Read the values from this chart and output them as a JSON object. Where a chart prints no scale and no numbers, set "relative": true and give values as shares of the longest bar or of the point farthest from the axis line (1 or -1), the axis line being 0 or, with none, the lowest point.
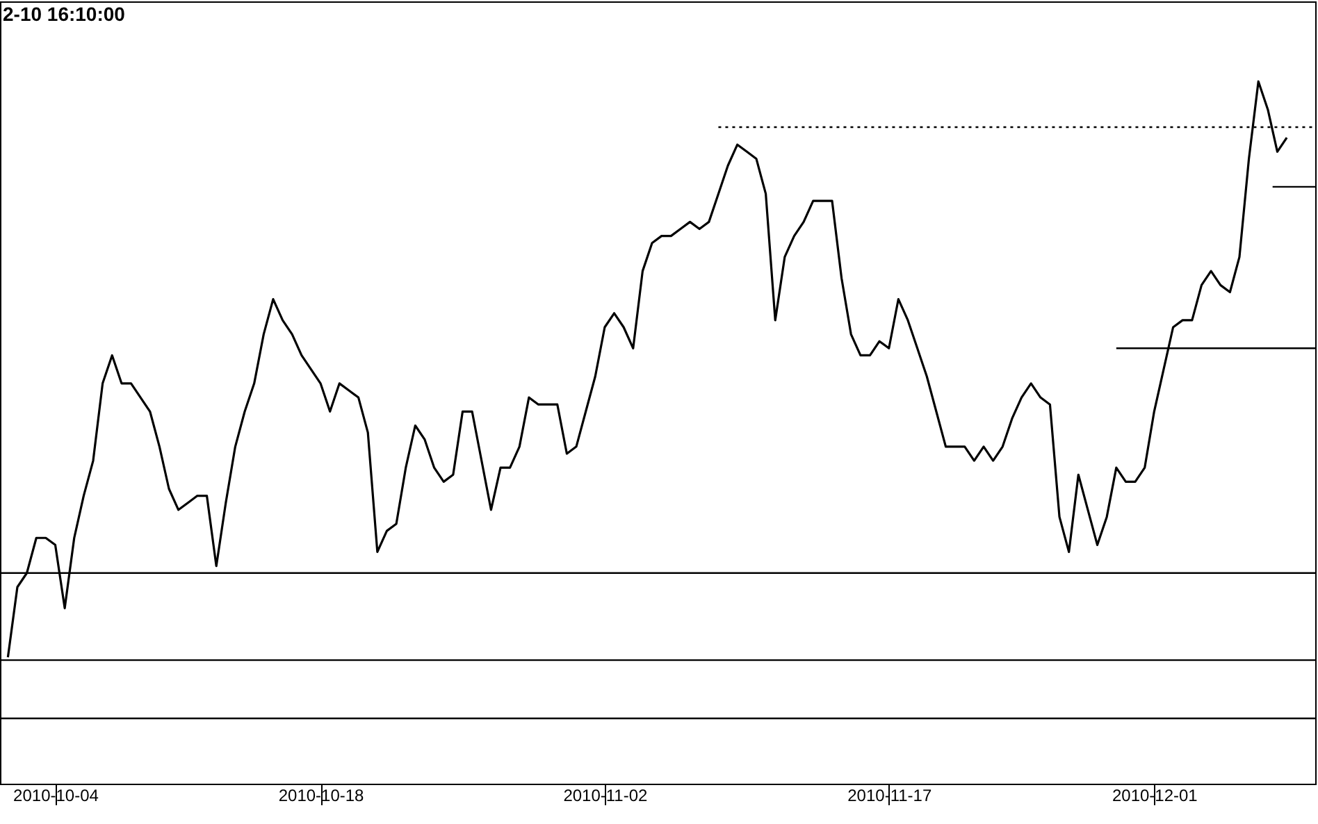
{
  "chart_data": {
    "type": "line",
    "title": "2-10 16:10:00",
    "relative": true,
    "xlim": [
      "2010-10-01T02:00",
      "2010-12-09T12:00"
    ],
    "xticks": [
      "2010-10-04",
      "2010-10-18",
      "2010-11-02",
      "2010-11-17",
      "2010-12-01"
    ],
    "x": [
      "2010-10-01T12:00",
      "2010-10-02T00:00",
      "2010-10-02T12:00",
      "2010-10-03T00:00",
      "2010-10-03T12:00",
      "2010-10-04T00:00",
      "2010-10-04T12:00",
      "2010-10-05T00:00",
      "2010-10-05T12:00",
      "2010-10-06T00:00",
      "2010-10-06T12:00",
      "2010-10-07T00:00",
      "2010-10-07T12:00",
      "2010-10-08T00:00",
      "2010-10-08T12:00",
      "2010-10-09T00:00",
      "2010-10-09T12:00",
      "2010-10-10T00:00",
      "2010-10-10T12:00",
      "2010-10-11T00:00",
      "2010-10-11T12:00",
      "2010-10-12T00:00",
      "2010-10-12T12:00",
      "2010-10-13T00:00",
      "2010-10-13T12:00",
      "2010-10-14T00:00",
      "2010-10-14T12:00",
      "2010-10-15T00:00",
      "2010-10-15T12:00",
      "2010-10-16T00:00",
      "2010-10-16T12:00",
      "2010-10-17T00:00",
      "2010-10-17T12:00",
      "2010-10-18T00:00",
      "2010-10-18T12:00",
      "2010-10-19T00:00",
      "2010-10-19T12:00",
      "2010-10-20T00:00",
      "2010-10-20T12:00",
      "2010-10-21T00:00",
      "2010-10-21T12:00",
      "2010-10-22T00:00",
      "2010-10-22T12:00",
      "2010-10-23T00:00",
      "2010-10-23T12:00",
      "2010-10-24T00:00",
      "2010-10-24T12:00",
      "2010-10-25T00:00",
      "2010-10-25T12:00",
      "2010-10-26T00:00",
      "2010-10-26T12:00",
      "2010-10-27T00:00",
      "2010-10-27T12:00",
      "2010-10-28T00:00",
      "2010-10-28T12:00",
      "2010-10-29T00:00",
      "2010-10-29T12:00",
      "2010-10-30T00:00",
      "2010-10-30T12:00",
      "2010-10-31T00:00",
      "2010-10-31T12:00",
      "2010-11-01T00:00",
      "2010-11-01T12:00",
      "2010-11-02T00:00",
      "2010-11-02T12:00",
      "2010-11-03T00:00",
      "2010-11-03T12:00",
      "2010-11-04T00:00",
      "2010-11-04T12:00",
      "2010-11-05T00:00",
      "2010-11-05T12:00",
      "2010-11-06T00:00",
      "2010-11-06T12:00",
      "2010-11-07T00:00",
      "2010-11-07T12:00",
      "2010-11-08T00:00",
      "2010-11-08T12:00",
      "2010-11-09T00:00",
      "2010-11-09T12:00",
      "2010-11-10T00:00",
      "2010-11-10T12:00",
      "2010-11-11T00:00",
      "2010-11-11T12:00",
      "2010-11-12T00:00",
      "2010-11-12T12:00",
      "2010-11-13T00:00",
      "2010-11-13T12:00",
      "2010-11-14T00:00",
      "2010-11-14T12:00",
      "2010-11-15T00:00",
      "2010-11-15T12:00",
      "2010-11-16T00:00",
      "2010-11-16T12:00",
      "2010-11-17T00:00",
      "2010-11-17T12:00",
      "2010-11-18T00:00",
      "2010-11-18T12:00",
      "2010-11-19T00:00",
      "2010-11-19T12:00",
      "2010-11-20T00:00",
      "2010-11-20T12:00",
      "2010-11-21T00:00",
      "2010-11-21T12:00",
      "2010-11-22T00:00",
      "2010-11-22T12:00",
      "2010-11-23T00:00",
      "2010-11-23T12:00",
      "2010-11-24T00:00",
      "2010-11-24T12:00",
      "2010-11-25T00:00",
      "2010-11-25T12:00",
      "2010-11-26T00:00",
      "2010-11-26T12:00",
      "2010-11-27T00:00",
      "2010-11-27T12:00",
      "2010-11-28T00:00",
      "2010-11-28T12:00",
      "2010-11-29T00:00",
      "2010-11-29T12:00",
      "2010-11-30T00:00",
      "2010-11-30T12:00",
      "2010-12-01T00:00",
      "2010-12-01T12:00",
      "2010-12-02T00:00",
      "2010-12-02T12:00",
      "2010-12-03T00:00",
      "2010-12-03T12:00",
      "2010-12-04T00:00",
      "2010-12-04T12:00",
      "2010-12-05T00:00",
      "2010-12-05T12:00",
      "2010-12-06T00:00",
      "2010-12-06T12:00",
      "2010-12-07T00:00",
      "2010-12-07T12:00",
      "2010-12-08T00:00"
    ],
    "series": [
      {
        "color": "#000000",
        "values": [
          0.18,
          0.28,
          0.3,
          0.35,
          0.35,
          0.34,
          0.25,
          0.35,
          0.41,
          0.46,
          0.57,
          0.61,
          0.57,
          0.57,
          0.55,
          0.53,
          0.48,
          0.42,
          0.39,
          0.4,
          0.41,
          0.41,
          0.31,
          0.4,
          0.48,
          0.53,
          0.57,
          0.64,
          0.69,
          0.66,
          0.64,
          0.61,
          0.59,
          0.57,
          0.53,
          0.57,
          0.56,
          0.55,
          0.5,
          0.33,
          0.36,
          0.37,
          0.45,
          0.51,
          0.49,
          0.45,
          0.43,
          0.44,
          0.53,
          0.53,
          0.46,
          0.39,
          0.45,
          0.45,
          0.48,
          0.55,
          0.54,
          0.54,
          0.54,
          0.47,
          0.48,
          0.53,
          0.58,
          0.65,
          0.67,
          0.65,
          0.62,
          0.73,
          0.77,
          0.78,
          0.78,
          0.79,
          0.8,
          0.79,
          0.8,
          0.84,
          0.88,
          0.91,
          0.9,
          0.89,
          0.84,
          0.66,
          0.75,
          0.78,
          0.8,
          0.83,
          0.83,
          0.83,
          0.72,
          0.64,
          0.61,
          0.61,
          0.63,
          0.62,
          0.69,
          0.66,
          0.62,
          0.58,
          0.53,
          0.48,
          0.48,
          0.48,
          0.46,
          0.48,
          0.46,
          0.48,
          0.52,
          0.55,
          0.57,
          0.55,
          0.54,
          0.38,
          0.33,
          0.44,
          0.39,
          0.34,
          0.38,
          0.45,
          0.43,
          0.43,
          0.45,
          0.53,
          0.59,
          0.65,
          0.66,
          0.66,
          0.71,
          0.73,
          0.71,
          0.7,
          0.75,
          0.89,
          1,
          0.96,
          0.9,
          0.92
        ]
      },
      {
        "type": "line",
        "color": "#000000",
        "line_style": "dotted",
        "x": [
          "2010-11-08T00:00",
          "2010-12-09T12:00"
        ],
        "values": [
          0.935,
          0.935
        ]
      },
      {
        "type": "line",
        "color": "#000000",
        "line_style": "solid",
        "x": [
          "2010-11-29T00:00",
          "2010-12-09T12:00"
        ],
        "values": [
          0.62,
          0.62
        ]
      },
      {
        "type": "line",
        "color": "#000000",
        "line_style": "solid",
        "x": [
          "2010-12-07T06:00",
          "2010-12-09T12:00"
        ],
        "values": [
          0.85,
          0.85
        ]
      }
    ],
    "ref_lines": [
      {
        "axis": "y",
        "value": 0.3,
        "color": "#000000"
      },
      {
        "axis": "y",
        "value": 0.176,
        "color": "#000000"
      },
      {
        "axis": "y",
        "value": 0.093,
        "color": "#000000"
      }
    ]
  }
}
